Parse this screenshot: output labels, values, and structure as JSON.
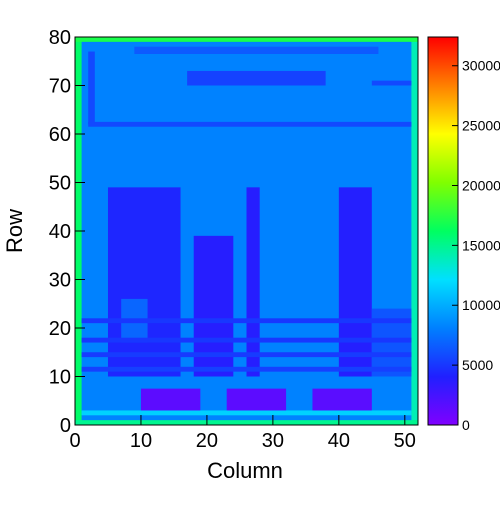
{
  "chart_data": {
    "type": "heatmap",
    "x_label": "Column",
    "y_label": "Row",
    "xlim": [
      0,
      52
    ],
    "xticks": [
      0,
      10,
      20,
      30,
      40,
      50
    ],
    "ylim": [
      0,
      80
    ],
    "yticks": [
      0,
      10,
      20,
      30,
      40,
      50,
      60,
      70,
      80
    ],
    "zlim": [
      0,
      32400
    ],
    "zticks": [
      0,
      5000,
      10000,
      15000,
      20000,
      25000,
      30000
    ],
    "colorscale": [
      "#8000ff",
      "#2020ff",
      "#0080ff",
      "#00e0ff",
      "#00ff60",
      "#80ff00",
      "#ffff00",
      "#ff8000",
      "#ff0000"
    ],
    "regions": [
      {
        "x": [
          0,
          52
        ],
        "y": [
          0,
          80
        ],
        "value": 8200
      },
      {
        "x": [
          0,
          1
        ],
        "y": [
          0,
          80
        ],
        "value": 16000
      },
      {
        "x": [
          51,
          52
        ],
        "y": [
          0,
          80
        ],
        "value": 14000
      },
      {
        "x": [
          0,
          52
        ],
        "y": [
          79,
          80
        ],
        "value": 17000
      },
      {
        "x": [
          0,
          52
        ],
        "y": [
          0,
          1
        ],
        "value": 15000
      },
      {
        "x": [
          1,
          51
        ],
        "y": [
          2,
          3
        ],
        "value": 11500
      },
      {
        "x": [
          2,
          51
        ],
        "y": [
          61.5,
          62.5
        ],
        "value": 5800
      },
      {
        "x": [
          2,
          3
        ],
        "y": [
          62,
          77
        ],
        "value": 5800
      },
      {
        "x": [
          9,
          46
        ],
        "y": [
          76.5,
          78
        ],
        "value": 6500
      },
      {
        "x": [
          17,
          38
        ],
        "y": [
          70,
          73
        ],
        "value": 5500
      },
      {
        "x": [
          45,
          51
        ],
        "y": [
          70,
          71
        ],
        "value": 5800
      },
      {
        "x": [
          5,
          16
        ],
        "y": [
          10,
          49
        ],
        "value": 4300
      },
      {
        "x": [
          7,
          11
        ],
        "y": [
          17,
          26
        ],
        "value": 7000
      },
      {
        "x": [
          18,
          24
        ],
        "y": [
          10,
          39
        ],
        "value": 3800
      },
      {
        "x": [
          26,
          28
        ],
        "y": [
          10,
          49
        ],
        "value": 3800
      },
      {
        "x": [
          40,
          45
        ],
        "y": [
          10,
          49
        ],
        "value": 3900
      },
      {
        "x": [
          45,
          51
        ],
        "y": [
          10,
          24
        ],
        "value": 6300
      },
      {
        "x": [
          1,
          51
        ],
        "y": [
          21,
          22
        ],
        "value": 5000
      },
      {
        "x": [
          1,
          51
        ],
        "y": [
          17,
          18
        ],
        "value": 5000
      },
      {
        "x": [
          1,
          51
        ],
        "y": [
          14,
          15
        ],
        "value": 5200
      },
      {
        "x": [
          1,
          51
        ],
        "y": [
          11,
          12
        ],
        "value": 5400
      },
      {
        "x": [
          10,
          19
        ],
        "y": [
          3,
          7.5
        ],
        "value": 1500
      },
      {
        "x": [
          23,
          32
        ],
        "y": [
          3,
          7.5
        ],
        "value": 1500
      },
      {
        "x": [
          36,
          45
        ],
        "y": [
          3,
          7.5
        ],
        "value": 1600
      }
    ]
  }
}
